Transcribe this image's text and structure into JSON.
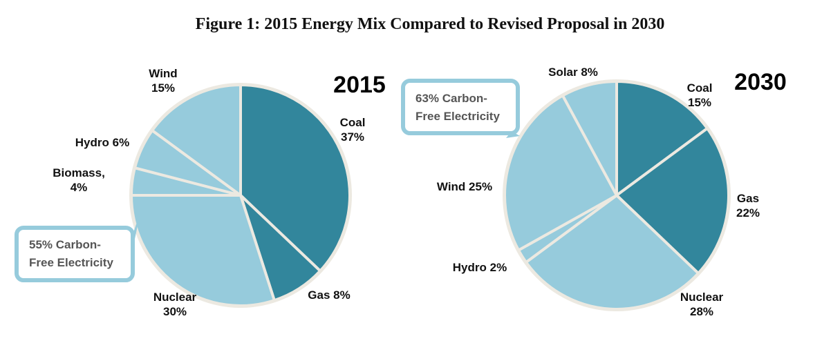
{
  "title": "Figure 1:  2015 Energy Mix Compared to Revised Proposal in 2030",
  "colors": {
    "dark": "#32869C",
    "light": "#96CBDC",
    "border": "#ECE9E1",
    "callout_border": "#96CBDC",
    "callout_text": "#555555"
  },
  "chart_data": [
    {
      "type": "pie",
      "title": "2015",
      "start": "12 o'clock, clockwise",
      "slices": [
        {
          "label": "Coal",
          "value": 37,
          "label_lines": [
            "Coal",
            "37%"
          ],
          "color": "#32869C"
        },
        {
          "label": "Gas",
          "value": 8,
          "label_lines": [
            "Gas 8%"
          ],
          "color": "#32869C"
        },
        {
          "label": "Nuclear",
          "value": 30,
          "label_lines": [
            "Nuclear",
            "30%"
          ],
          "color": "#96CBDC"
        },
        {
          "label": "Biomass",
          "value": 4,
          "label_lines": [
            "Biomass,",
            "4%"
          ],
          "color": "#96CBDC"
        },
        {
          "label": "Hydro",
          "value": 6,
          "label_lines": [
            "Hydro 6%"
          ],
          "color": "#96CBDC"
        },
        {
          "label": "Wind",
          "value": 15,
          "label_lines": [
            "Wind",
            "15%"
          ],
          "color": "#96CBDC"
        }
      ],
      "callout": [
        "55% Carbon-",
        "Free Electricity"
      ]
    },
    {
      "type": "pie",
      "title": "2030",
      "start": "12 o'clock, clockwise",
      "slices": [
        {
          "label": "Coal",
          "value": 15,
          "label_lines": [
            "Coal",
            "15%"
          ],
          "color": "#32869C"
        },
        {
          "label": "Gas",
          "value": 22,
          "label_lines": [
            "Gas",
            "22%"
          ],
          "color": "#32869C"
        },
        {
          "label": "Nuclear",
          "value": 28,
          "label_lines": [
            "Nuclear",
            "28%"
          ],
          "color": "#96CBDC"
        },
        {
          "label": "Hydro",
          "value": 2,
          "label_lines": [
            "Hydro 2%"
          ],
          "color": "#96CBDC"
        },
        {
          "label": "Wind",
          "value": 25,
          "label_lines": [
            "Wind 25%"
          ],
          "color": "#96CBDC"
        },
        {
          "label": "Solar",
          "value": 8,
          "label_lines": [
            "Solar 8%"
          ],
          "color": "#96CBDC"
        }
      ],
      "callout": [
        "63% Carbon-",
        "Free Electricity"
      ]
    }
  ]
}
